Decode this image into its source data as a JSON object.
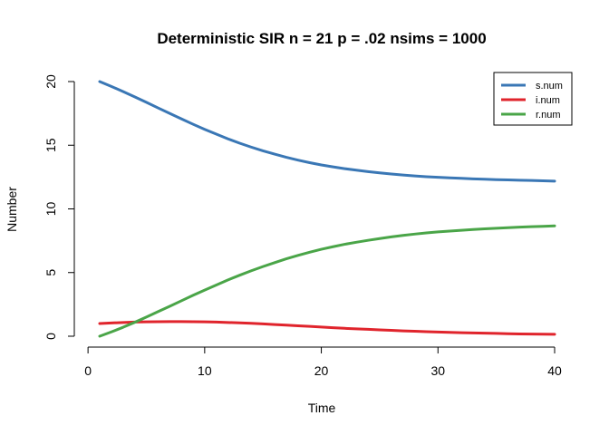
{
  "chart_data": {
    "type": "line",
    "title": "Deterministic SIR n = 21 p = .02 nsims = 1000",
    "xlabel": "Time",
    "ylabel": "Number",
    "xlim": [
      1,
      40
    ],
    "ylim": [
      0,
      20
    ],
    "xticks": [
      0,
      10,
      20,
      30,
      40
    ],
    "yticks": [
      0,
      5,
      10,
      15,
      20
    ],
    "grid": false,
    "legend_position": "top-right",
    "x": [
      1,
      2,
      3,
      4,
      5,
      6,
      7,
      8,
      9,
      10,
      11,
      12,
      13,
      14,
      15,
      16,
      17,
      18,
      19,
      20,
      21,
      22,
      23,
      24,
      25,
      26,
      27,
      28,
      29,
      30,
      31,
      32,
      33,
      34,
      35,
      36,
      37,
      38,
      39,
      40
    ],
    "series": [
      {
        "name": "s.num",
        "color": "#3a77b5",
        "values": [
          20.0,
          19.62,
          19.22,
          18.8,
          18.37,
          17.93,
          17.5,
          17.07,
          16.65,
          16.25,
          15.87,
          15.5,
          15.16,
          14.85,
          14.56,
          14.3,
          14.05,
          13.83,
          13.63,
          13.45,
          13.3,
          13.16,
          13.04,
          12.93,
          12.83,
          12.74,
          12.66,
          12.59,
          12.53,
          12.48,
          12.44,
          12.4,
          12.36,
          12.33,
          12.3,
          12.28,
          12.25,
          12.23,
          12.21,
          12.18
        ]
      },
      {
        "name": "i.num",
        "color": "#e0242c",
        "values": [
          1.0,
          1.04,
          1.08,
          1.11,
          1.13,
          1.14,
          1.15,
          1.15,
          1.14,
          1.13,
          1.11,
          1.08,
          1.05,
          1.01,
          0.97,
          0.92,
          0.87,
          0.82,
          0.77,
          0.72,
          0.67,
          0.62,
          0.58,
          0.54,
          0.5,
          0.46,
          0.42,
          0.39,
          0.36,
          0.33,
          0.3,
          0.28,
          0.26,
          0.24,
          0.22,
          0.2,
          0.18,
          0.17,
          0.16,
          0.15
        ]
      },
      {
        "name": "r.num",
        "color": "#4aa548",
        "values": [
          0.0,
          0.34,
          0.7,
          1.09,
          1.5,
          1.93,
          2.35,
          2.78,
          3.21,
          3.62,
          4.02,
          4.42,
          4.79,
          5.14,
          5.47,
          5.78,
          6.08,
          6.35,
          6.6,
          6.83,
          7.03,
          7.22,
          7.38,
          7.53,
          7.67,
          7.8,
          7.92,
          8.02,
          8.11,
          8.19,
          8.26,
          8.32,
          8.38,
          8.43,
          8.48,
          8.52,
          8.57,
          8.6,
          8.63,
          8.67
        ]
      }
    ]
  }
}
